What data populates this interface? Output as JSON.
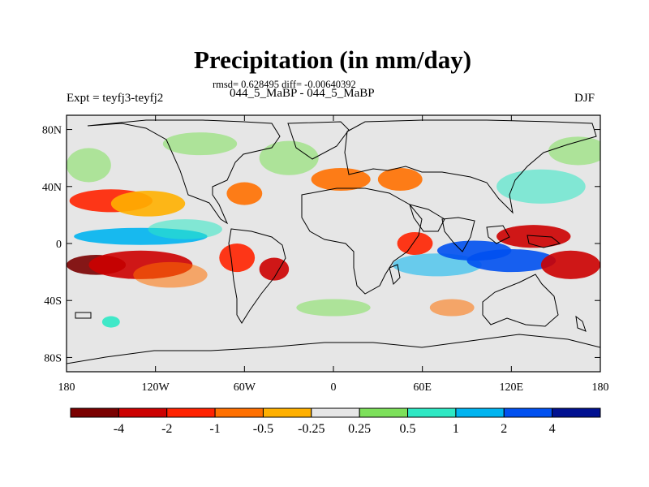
{
  "figure": {
    "title": "Precipitation (in mm/day)",
    "stats": "rmsd= 0.628495 diff= -0.00640392",
    "period": "044_5_MaBP - 044_5_MaBP",
    "experiment": "Expt = teyfj3-teyfj2",
    "season": "DJF"
  },
  "map": {
    "lon_ticks": [
      "180",
      "120W",
      "60W",
      "0",
      "60E",
      "120E",
      "180"
    ],
    "lat_ticks": [
      "80N",
      "40N",
      "0",
      "40S",
      "80S"
    ],
    "lon_values": [
      -180,
      -120,
      -60,
      0,
      60,
      120,
      180
    ],
    "lat_values": [
      80,
      40,
      0,
      -40,
      -80
    ],
    "lon_range": [
      -180,
      180
    ],
    "lat_range": [
      -90,
      90
    ],
    "background_color": "#e6e6e6",
    "coastline_color": "#000000"
  },
  "colorbar": {
    "labels": [
      "-4",
      "-2",
      "-1",
      "-0.5",
      "-0.25",
      "0.25",
      "0.5",
      "1",
      "2",
      "4"
    ],
    "colors": [
      "#7a0000",
      "#cc0000",
      "#ff2200",
      "#ff7000",
      "#ffb000",
      "#e6e6e6",
      "#7de05a",
      "#2ee8c4",
      "#00b4f0",
      "#0050f0",
      "#001090"
    ]
  },
  "anomaly_regions": [
    {
      "lon": -160,
      "lat": -15,
      "level": 0,
      "rx": 20,
      "ry": 7
    },
    {
      "lon": -130,
      "lat": -15,
      "level": 1,
      "rx": 35,
      "ry": 10
    },
    {
      "lon": -110,
      "lat": -22,
      "level": 3,
      "rx": 25,
      "ry": 9,
      "hatch": true
    },
    {
      "lon": -150,
      "lat": 30,
      "level": 2,
      "rx": 28,
      "ry": 8
    },
    {
      "lon": -125,
      "lat": 28,
      "level": 4,
      "rx": 25,
      "ry": 9
    },
    {
      "lon": -165,
      "lat": 55,
      "level": 6,
      "rx": 15,
      "ry": 12,
      "hatch": true
    },
    {
      "lon": -130,
      "lat": 5,
      "level": 8,
      "rx": 45,
      "ry": 6
    },
    {
      "lon": -100,
      "lat": 10,
      "level": 7,
      "rx": 25,
      "ry": 7,
      "hatch": true
    },
    {
      "lon": -90,
      "lat": 70,
      "level": 6,
      "rx": 25,
      "ry": 8,
      "hatch": true
    },
    {
      "lon": -60,
      "lat": 35,
      "level": 3,
      "rx": 12,
      "ry": 8
    },
    {
      "lon": -65,
      "lat": -10,
      "level": 2,
      "rx": 12,
      "ry": 10
    },
    {
      "lon": -40,
      "lat": -18,
      "level": 1,
      "rx": 10,
      "ry": 8
    },
    {
      "lon": -30,
      "lat": 60,
      "level": 6,
      "rx": 20,
      "ry": 12,
      "hatch": true
    },
    {
      "lon": 5,
      "lat": 45,
      "level": 3,
      "rx": 20,
      "ry": 8
    },
    {
      "lon": 45,
      "lat": 45,
      "level": 3,
      "rx": 15,
      "ry": 8
    },
    {
      "lon": 55,
      "lat": 0,
      "level": 2,
      "rx": 12,
      "ry": 8
    },
    {
      "lon": 70,
      "lat": -15,
      "level": 8,
      "rx": 30,
      "ry": 8,
      "hatch": true
    },
    {
      "lon": 95,
      "lat": -5,
      "level": 9,
      "rx": 25,
      "ry": 7
    },
    {
      "lon": 120,
      "lat": -12,
      "level": 9,
      "rx": 30,
      "ry": 8
    },
    {
      "lon": 135,
      "lat": 5,
      "level": 1,
      "rx": 25,
      "ry": 8
    },
    {
      "lon": 160,
      "lat": -15,
      "level": 1,
      "rx": 20,
      "ry": 10
    },
    {
      "lon": 140,
      "lat": 40,
      "level": 7,
      "rx": 30,
      "ry": 12,
      "hatch": true
    },
    {
      "lon": 165,
      "lat": 65,
      "level": 6,
      "rx": 20,
      "ry": 10,
      "hatch": true
    },
    {
      "lon": 80,
      "lat": -45,
      "level": 3,
      "rx": 15,
      "ry": 6,
      "hatch": true
    },
    {
      "lon": 0,
      "lat": -45,
      "level": 6,
      "rx": 25,
      "ry": 6,
      "hatch": true
    },
    {
      "lon": -150,
      "lat": -55,
      "level": 7,
      "rx": 6,
      "ry": 4
    }
  ]
}
